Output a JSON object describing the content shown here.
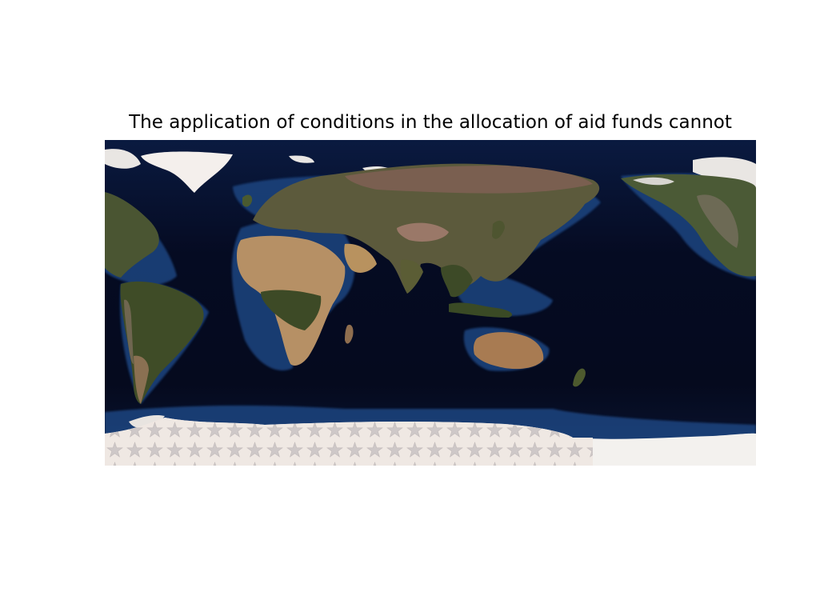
{
  "figure": {
    "title": "The application of conditions in the allocation of aid funds cannot"
  },
  "map": {
    "projection": "equirectangular",
    "central_longitude": 150,
    "style": "satellite imagery (blue marble)",
    "overlay": "star-hatch pattern over Antarctica",
    "colors": {
      "ocean_deep": "#05091c",
      "ocean_mid": "#0d1d44",
      "ocean_shelf": "#1f4a86",
      "land_desert": "#b49062",
      "land_forest": "#3f4d28",
      "land_tundra": "#6a5a48",
      "ice": "#f3f0ec",
      "hatch_fill": "#efe7e2",
      "star": "#c8c2c2"
    }
  }
}
